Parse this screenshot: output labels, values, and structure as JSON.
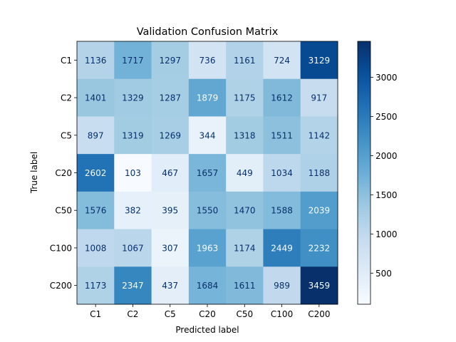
{
  "chart_data": {
    "type": "heatmap",
    "title": "Validation Confusion Matrix",
    "xlabel": "Predicted label",
    "ylabel": "True label",
    "x_categories": [
      "C1",
      "C2",
      "C5",
      "C20",
      "C50",
      "C100",
      "C200"
    ],
    "y_categories": [
      "C1",
      "C2",
      "C5",
      "C20",
      "C50",
      "C100",
      "C200"
    ],
    "values": [
      [
        1136,
        1717,
        1297,
        736,
        1161,
        724,
        3129
      ],
      [
        1401,
        1329,
        1287,
        1879,
        1175,
        1612,
        917
      ],
      [
        897,
        1319,
        1269,
        344,
        1318,
        1511,
        1142
      ],
      [
        2602,
        103,
        467,
        1657,
        449,
        1034,
        1188
      ],
      [
        1576,
        382,
        395,
        1550,
        1470,
        1588,
        2039
      ],
      [
        1008,
        1067,
        307,
        1963,
        1174,
        2449,
        2232
      ],
      [
        1173,
        2347,
        437,
        1684,
        1611,
        989,
        3459
      ]
    ],
    "colormap": "Blues",
    "vmin": 103,
    "vmax": 3459,
    "colorbar_ticks": [
      500,
      1000,
      1500,
      2000,
      2500,
      3000
    ],
    "grid": false
  }
}
